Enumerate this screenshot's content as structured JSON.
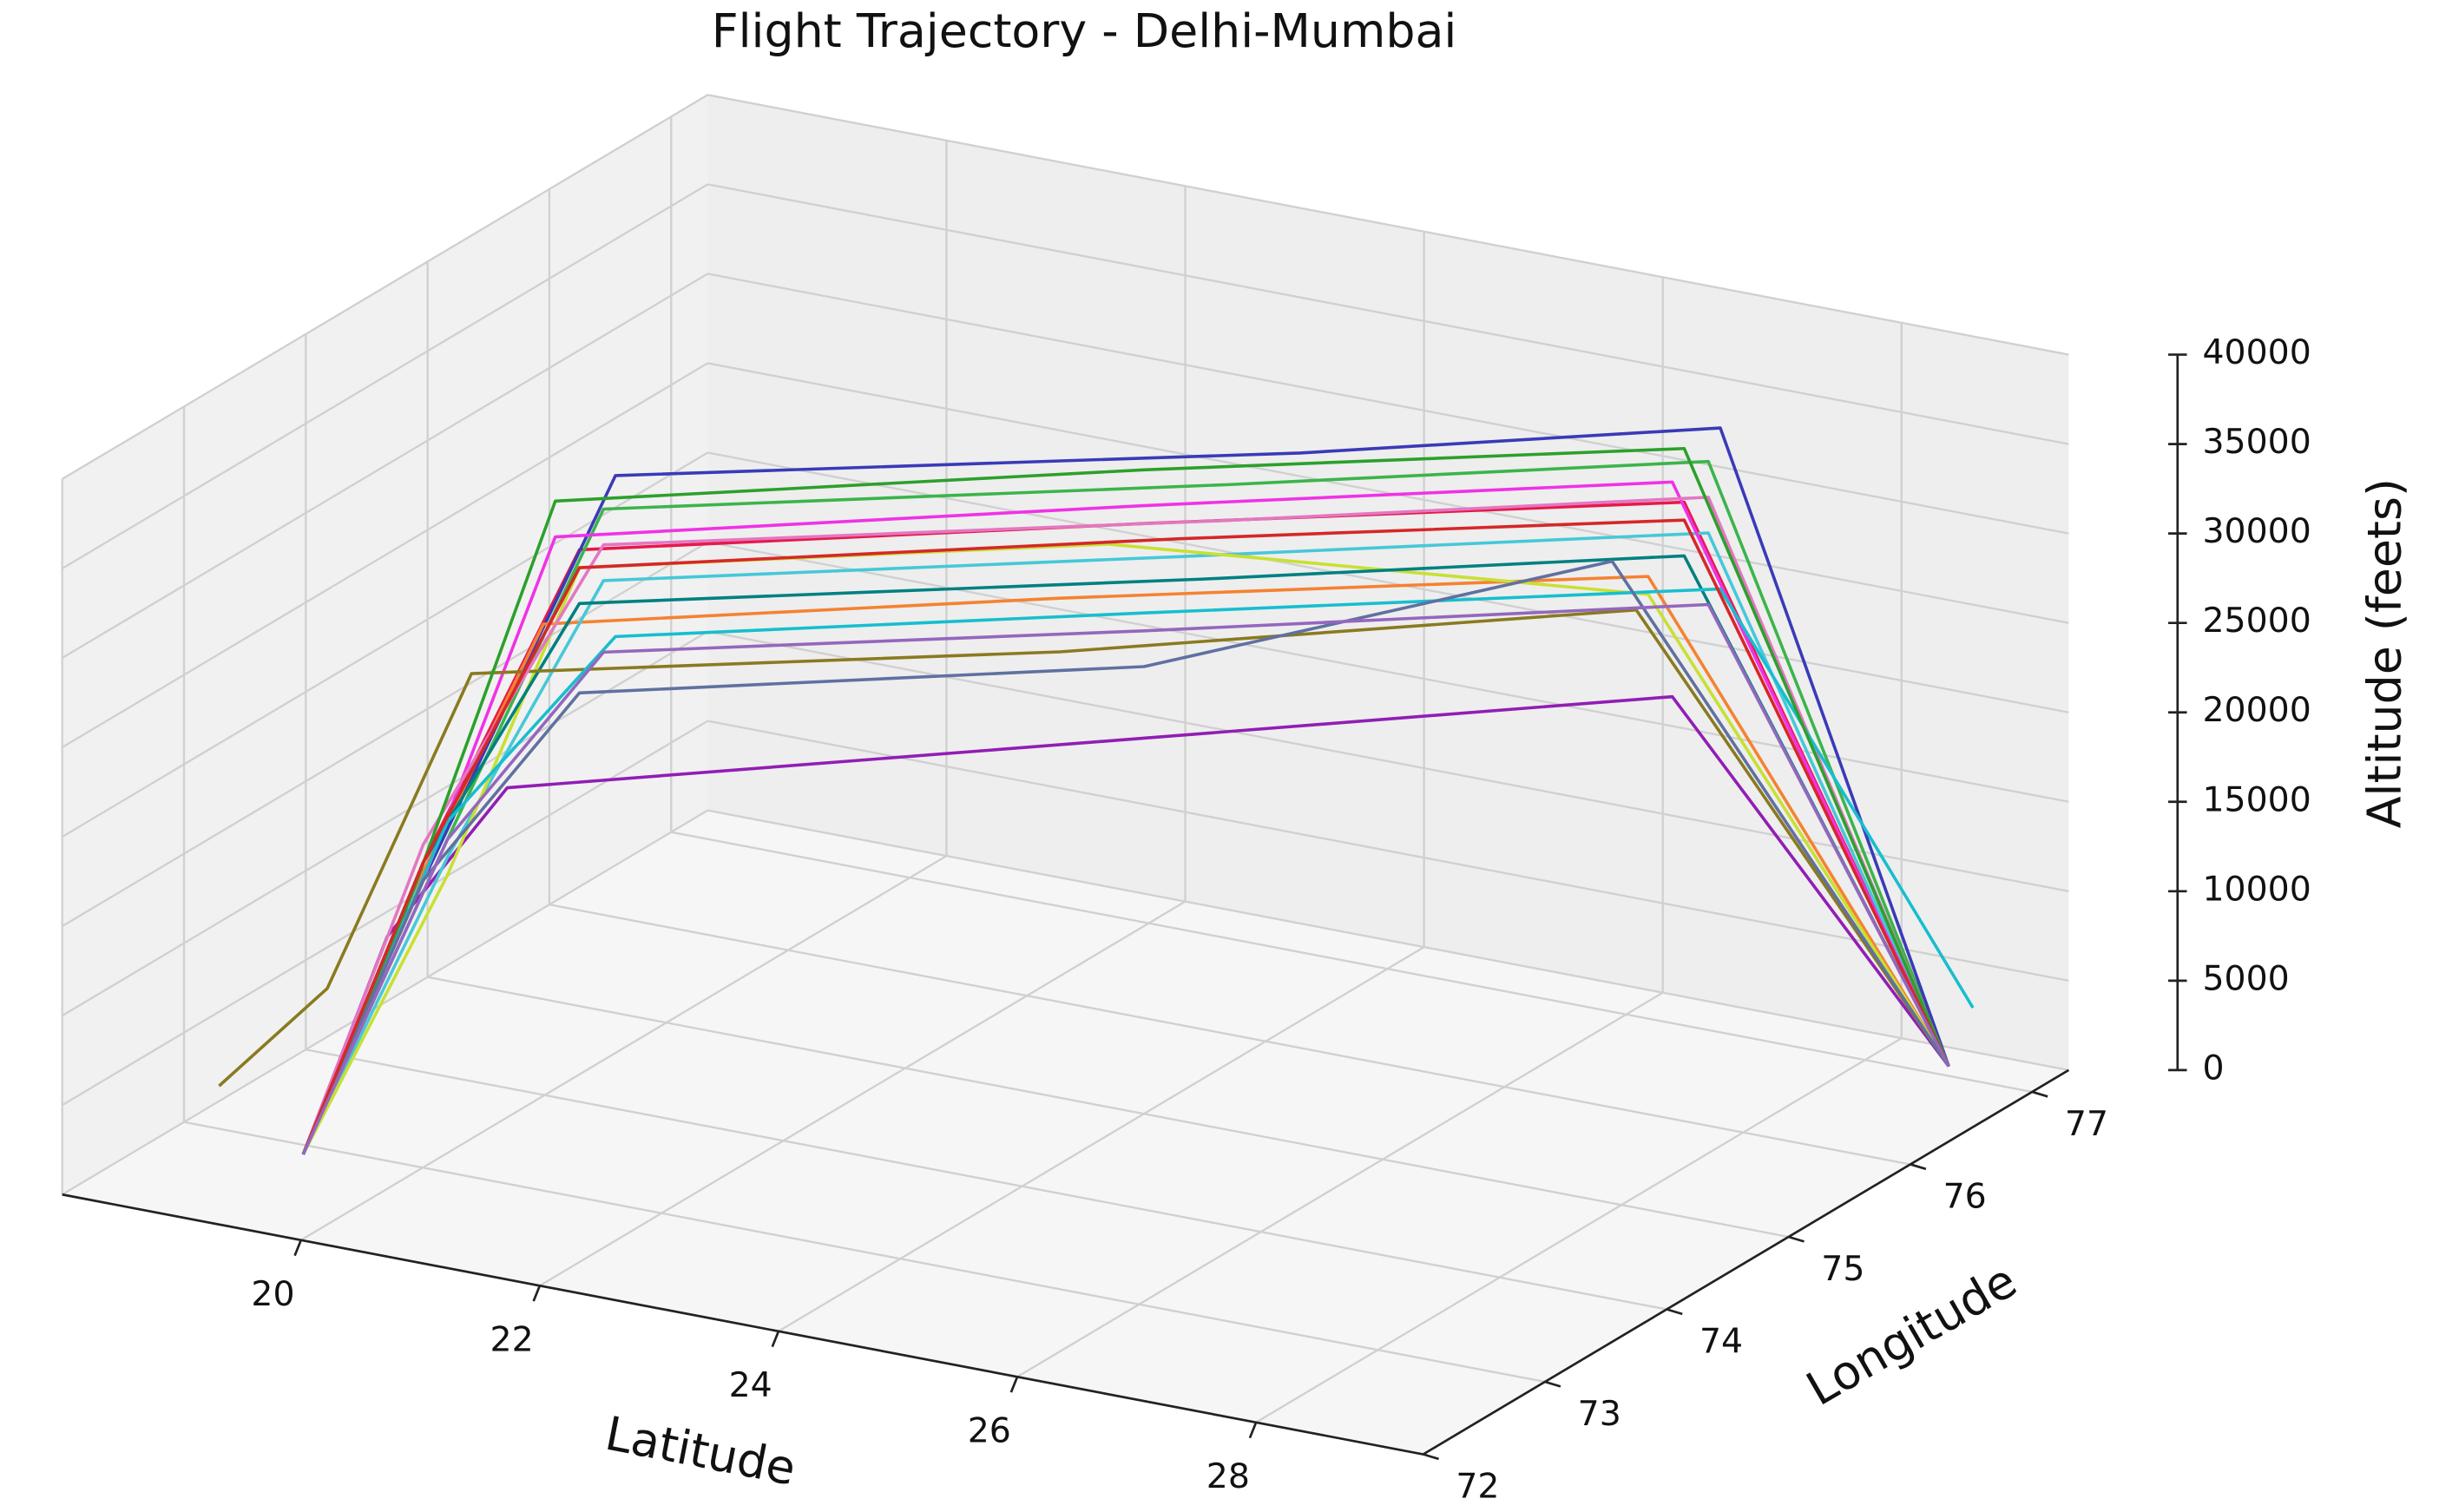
{
  "chart_data": {
    "type": "line3d",
    "title": "Flight Trajectory - Delhi-Mumbai",
    "xlabel": "Latitude",
    "ylabel": "Longitude",
    "zlabel": "Altitude (feets)",
    "xlim": [
      18,
      29.4
    ],
    "ylim": [
      72,
      77.3
    ],
    "zlim": [
      0,
      40000
    ],
    "xticks": [
      20,
      22,
      24,
      26,
      28
    ],
    "yticks": [
      72,
      73,
      74,
      75,
      76,
      77
    ],
    "zticks": [
      0,
      5000,
      10000,
      15000,
      20000,
      25000,
      30000,
      35000,
      40000
    ],
    "grid": true,
    "series": [
      {
        "color": "#e6194b",
        "x": [
          19.1,
          19.8,
          20.7,
          24.0,
          27.2,
          28.6
        ],
        "y": [
          72.9,
          73.2,
          73.6,
          75.0,
          76.3,
          77.1
        ],
        "z": [
          0,
          16000,
          33000,
          33000,
          33000,
          0
        ]
      },
      {
        "color": "#3cb44b",
        "x": [
          19.1,
          19.9,
          20.8,
          24.5,
          27.3,
          28.6
        ],
        "y": [
          72.9,
          73.3,
          73.7,
          75.2,
          76.4,
          77.1
        ],
        "z": [
          0,
          17000,
          35000,
          35000,
          35000,
          0
        ]
      },
      {
        "color": "#3a3ab8",
        "x": [
          19.1,
          19.8,
          20.9,
          25.0,
          27.4,
          28.6
        ],
        "y": [
          72.9,
          73.2,
          73.7,
          75.3,
          76.4,
          77.1
        ],
        "z": [
          0,
          15000,
          37000,
          37000,
          37000,
          0
        ]
      },
      {
        "color": "#f58231",
        "x": [
          19.1,
          19.7,
          20.5,
          23.5,
          27.0,
          28.6
        ],
        "y": [
          72.9,
          73.2,
          73.5,
          74.8,
          76.2,
          77.1
        ],
        "z": [
          0,
          14000,
          29000,
          29000,
          29000,
          0
        ]
      },
      {
        "color": "#911eb4",
        "x": [
          19.1,
          19.6,
          20.3,
          24.0,
          27.1,
          28.6
        ],
        "y": [
          72.9,
          73.1,
          73.4,
          75.0,
          76.3,
          77.1
        ],
        "z": [
          0,
          12000,
          20000,
          21000,
          22000,
          0
        ]
      },
      {
        "color": "#46c8d8",
        "x": [
          19.1,
          19.9,
          20.8,
          24.2,
          27.3,
          28.6
        ],
        "y": [
          72.9,
          73.3,
          73.7,
          75.1,
          76.4,
          77.1
        ],
        "z": [
          0,
          16000,
          31000,
          31000,
          31000,
          0
        ]
      },
      {
        "color": "#f032e6",
        "x": [
          19.1,
          19.8,
          20.6,
          24.0,
          27.1,
          28.6
        ],
        "y": [
          72.9,
          73.2,
          73.5,
          75.0,
          76.3,
          77.1
        ],
        "z": [
          0,
          15000,
          34000,
          34000,
          34000,
          0
        ]
      },
      {
        "color": "#c8e032",
        "x": [
          19.1,
          19.9,
          20.7,
          23.8,
          27.0,
          28.6
        ],
        "y": [
          72.9,
          73.3,
          73.6,
          74.9,
          76.2,
          77.1
        ],
        "z": [
          0,
          15000,
          32000,
          32000,
          28000,
          0
        ]
      },
      {
        "color": "#008080",
        "x": [
          19.1,
          19.8,
          20.7,
          24.4,
          27.2,
          28.6
        ],
        "y": [
          72.9,
          73.2,
          73.6,
          75.1,
          76.3,
          77.1
        ],
        "z": [
          0,
          16000,
          30000,
          30000,
          30000,
          0
        ]
      },
      {
        "color": "#8a7a20",
        "x": [
          18.6,
          19.2,
          20.0,
          23.5,
          26.9,
          28.6
        ],
        "y": [
          72.7,
          73.0,
          73.4,
          74.8,
          76.2,
          77.1
        ],
        "z": [
          4000,
          9000,
          26000,
          26000,
          27000,
          0
        ]
      },
      {
        "color": "#e377c2",
        "x": [
          19.1,
          19.8,
          20.8,
          24.5,
          27.3,
          28.6
        ],
        "y": [
          72.9,
          73.2,
          73.7,
          75.2,
          76.4,
          77.1
        ],
        "z": [
          0,
          17000,
          33000,
          33000,
          33000,
          0
        ]
      },
      {
        "color": "#17becf",
        "x": [
          19.1,
          19.9,
          20.9,
          24.0,
          27.4,
          28.7
        ],
        "y": [
          72.9,
          73.3,
          73.7,
          75.0,
          76.4,
          77.2
        ],
        "z": [
          0,
          18000,
          28000,
          28000,
          28000,
          3000
        ]
      },
      {
        "color": "#2ca02c",
        "x": [
          19.1,
          19.7,
          20.6,
          24.0,
          27.2,
          28.6
        ],
        "y": [
          72.9,
          73.2,
          73.5,
          75.0,
          76.3,
          77.1
        ],
        "z": [
          0,
          14000,
          36000,
          36000,
          36000,
          0
        ]
      },
      {
        "color": "#6070a0",
        "x": [
          19.1,
          19.8,
          20.7,
          24.0,
          26.8,
          28.6
        ],
        "y": [
          72.9,
          73.2,
          73.6,
          75.0,
          76.1,
          77.1
        ],
        "z": [
          0,
          15000,
          25000,
          25000,
          30000,
          0
        ]
      },
      {
        "color": "#d62728",
        "x": [
          19.1,
          19.8,
          20.7,
          24.2,
          27.2,
          28.6
        ],
        "y": [
          72.9,
          73.2,
          73.6,
          75.1,
          76.3,
          77.1
        ],
        "z": [
          0,
          16000,
          32000,
          32000,
          32000,
          0
        ]
      },
      {
        "color": "#9467bd",
        "x": [
          19.1,
          19.9,
          20.8,
          24.0,
          27.3,
          28.6
        ],
        "y": [
          72.9,
          73.3,
          73.7,
          75.0,
          76.4,
          77.1
        ],
        "z": [
          0,
          17000,
          27000,
          27000,
          27000,
          0
        ]
      }
    ]
  }
}
